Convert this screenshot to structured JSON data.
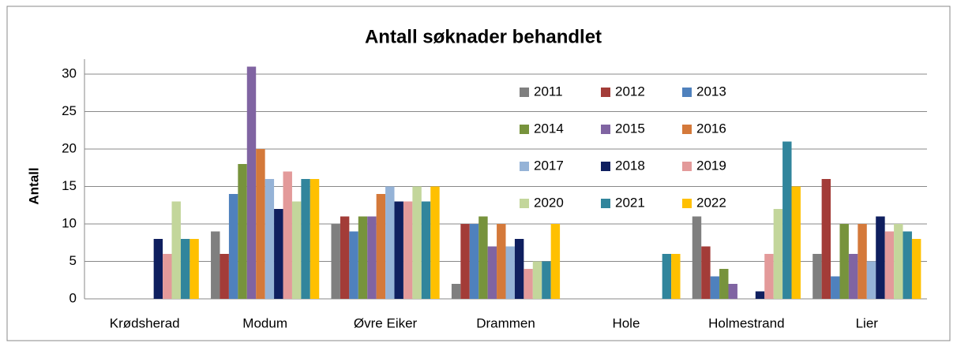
{
  "chart_data": {
    "type": "bar",
    "title": "Antall søknader behandlet",
    "y_label": "Antall",
    "categories": [
      "Krødsherad",
      "Modum",
      "Øvre Eiker",
      "Drammen",
      "Hole",
      "Holmestrand",
      "Lier"
    ],
    "series": [
      {
        "name": "2011",
        "color": "#7f7f7f",
        "values": [
          0,
          9,
          10,
          2,
          0,
          11,
          6
        ]
      },
      {
        "name": "2012",
        "color": "#a33c38",
        "values": [
          0,
          6,
          11,
          10,
          0,
          7,
          16
        ]
      },
      {
        "name": "2013",
        "color": "#4f81bd",
        "values": [
          0,
          14,
          9,
          10,
          0,
          3,
          3
        ]
      },
      {
        "name": "2014",
        "color": "#77933c",
        "values": [
          0,
          18,
          11,
          11,
          0,
          4,
          10
        ]
      },
      {
        "name": "2015",
        "color": "#8064a2",
        "values": [
          0,
          31,
          11,
          7,
          0,
          2,
          6
        ]
      },
      {
        "name": "2016",
        "color": "#d4793a",
        "values": [
          0,
          20,
          14,
          10,
          0,
          0,
          10
        ]
      },
      {
        "name": "2017",
        "color": "#95b3d7",
        "values": [
          0,
          16,
          15,
          7,
          0,
          0,
          5
        ]
      },
      {
        "name": "2018",
        "color": "#0f1f5f",
        "values": [
          8,
          12,
          13,
          8,
          0,
          1,
          11
        ]
      },
      {
        "name": "2019",
        "color": "#e39a9a",
        "values": [
          6,
          17,
          13,
          4,
          0,
          6,
          9
        ]
      },
      {
        "name": "2020",
        "color": "#c3d69b",
        "values": [
          13,
          13,
          15,
          5,
          0,
          12,
          10
        ]
      },
      {
        "name": "2021",
        "color": "#31859c",
        "values": [
          8,
          16,
          13,
          5,
          6,
          21,
          9
        ]
      },
      {
        "name": "2022",
        "color": "#ffc000",
        "values": [
          8,
          16,
          15,
          10,
          6,
          15,
          8
        ]
      }
    ],
    "ylim": [
      0,
      32
    ],
    "yticks": [
      0,
      5,
      10,
      15,
      20,
      25,
      30
    ],
    "grid": true
  }
}
